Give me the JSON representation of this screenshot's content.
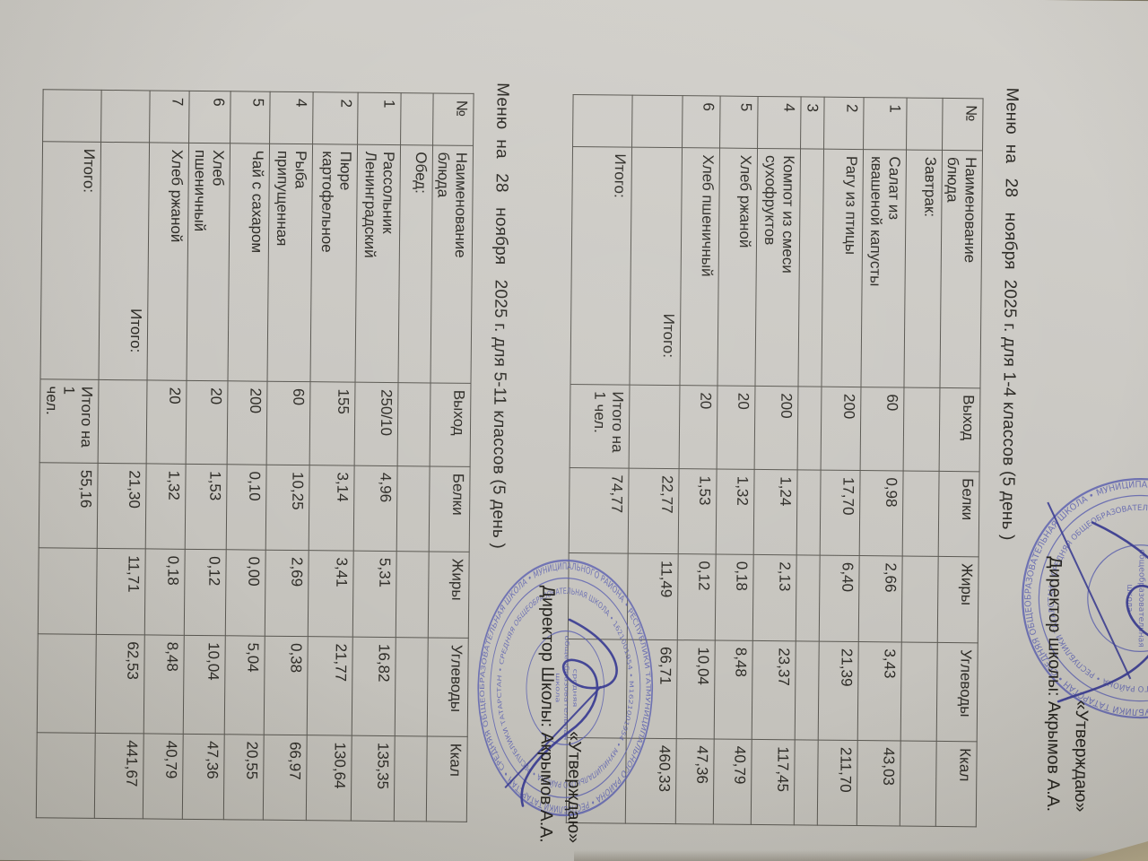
{
  "approvals": [
    {
      "line1": "«Утверждаю»",
      "line2": "Директор школы: Акрымов А.А."
    },
    {
      "line1": "«Утверждаю»",
      "line2": "Директор Школы: Акрымов А.А."
    }
  ],
  "menus": [
    {
      "title": "Меню  на   28   ноября  2025 г. для 1-4 классов (5 день )",
      "columns": [
        "№",
        "Наименование\nблюда",
        "Выход",
        "Белки",
        "Жиры",
        "Углеводы",
        "Ккал"
      ],
      "rows": [
        [
          "",
          "Завтрак:",
          "",
          "",
          "",
          "",
          ""
        ],
        [
          "1",
          "Салат из\nквашеной капусты",
          "60",
          "0,98",
          "2,66",
          "3,43",
          "43,03"
        ],
        [
          "2",
          "Рагу из птицы",
          "200",
          "17,70",
          "6,40",
          "21,39",
          "211,70"
        ],
        [
          "3",
          "",
          "",
          "",
          "",
          "",
          ""
        ],
        [
          "4",
          "Компот из смеси\nсухофруктов",
          "200",
          "1,24",
          "2,13",
          "23,37",
          "117,45"
        ],
        [
          "5",
          "Хлеб ржаной",
          "20",
          "1,32",
          "0,18",
          "8,48",
          "40,79"
        ],
        [
          "6",
          "Хлеб пшеничный",
          "20",
          "1,53",
          "0,12",
          "10,04",
          "47,36"
        ],
        [
          "",
          "Итого:",
          "",
          "22,77",
          "11,49",
          "66,71",
          "460,33"
        ],
        [
          "",
          "Итого:",
          "Итого на\n1 чел.",
          "74,77",
          "",
          "",
          ""
        ]
      ]
    },
    {
      "title": "Меню  на   28   ноября   2025 г. для 5-11 классов (5 день )",
      "columns": [
        "№",
        "Наименование\nблюда",
        "Выход",
        "Белки",
        "Жиры",
        "Углеводы",
        "Ккал"
      ],
      "rows": [
        [
          "",
          "Обед:",
          "",
          "",
          "",
          "",
          ""
        ],
        [
          "1",
          "Рассольник\nЛенинградский",
          "250/10",
          "4,96",
          "5,31",
          "16,82",
          "135,35"
        ],
        [
          "2",
          "Пюре\nкартофельное",
          "155",
          "3,14",
          "3,41",
          "21,77",
          "130,64"
        ],
        [
          "4",
          "Рыба\nприпущенная",
          "60",
          "10,25",
          "2,69",
          "0,38",
          "66,97"
        ],
        [
          "5",
          "Чай с сахаром",
          "200",
          "0,10",
          "0,00",
          "5,04",
          "20,55"
        ],
        [
          "6",
          "Хлеб\nпшеничный",
          "20",
          "1,53",
          "0,12",
          "10,04",
          "47,36"
        ],
        [
          "7",
          "Хлеб  ржаной",
          "20",
          "1,32",
          "0,18",
          "8,48",
          "40,79"
        ],
        [
          "",
          "Итого:",
          "",
          "21,30",
          "11,71",
          "62,53",
          "441,67"
        ],
        [
          "",
          "Итого:",
          "Итого на 1\nчел.",
          "55,16",
          "",
          "",
          ""
        ]
      ]
    }
  ],
  "stamp": {
    "color": "#5b60b0",
    "ring_text": "МУНИЦИПАЛЬНОГО РАЙОНА • РЕСПУБЛИКИ ТАТАРСТАН • СРЕДНЯЯ ОБЩЕОБРАЗОВАТЕЛЬНАЯ ШКОЛА • ",
    "center_lines": [
      "средняя",
      "общеобразовательная",
      "школа"
    ],
    "number": "1621001954"
  }
}
